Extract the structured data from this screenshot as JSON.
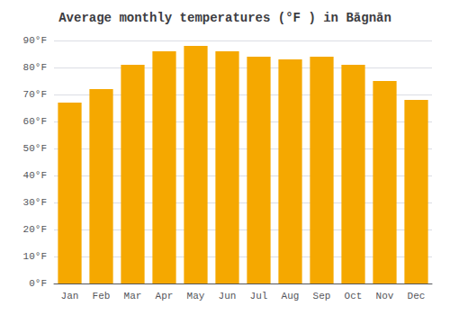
{
  "chart_data": {
    "type": "bar",
    "title": "Average monthly temperatures (°F ) in Bāgnān",
    "categories": [
      "Jan",
      "Feb",
      "Mar",
      "Apr",
      "May",
      "Jun",
      "Jul",
      "Aug",
      "Sep",
      "Oct",
      "Nov",
      "Dec"
    ],
    "values": [
      67,
      72,
      81,
      86,
      88,
      86,
      84,
      83,
      84,
      81,
      75,
      68
    ],
    "color": "#F5A800",
    "ylim": [
      0,
      90
    ],
    "yticks": [
      {
        "value": 0,
        "label": "0°F"
      },
      {
        "value": 10,
        "label": "10°F"
      },
      {
        "value": 20,
        "label": "20°F"
      },
      {
        "value": 30,
        "label": "30°F"
      },
      {
        "value": 40,
        "label": "40°F"
      },
      {
        "value": 50,
        "label": "50°F"
      },
      {
        "value": 60,
        "label": "60°F"
      },
      {
        "value": 70,
        "label": "70°F"
      },
      {
        "value": 80,
        "label": "80°F"
      },
      {
        "value": 90,
        "label": "90°F"
      }
    ],
    "grid": true
  }
}
